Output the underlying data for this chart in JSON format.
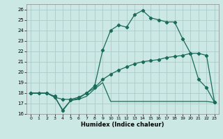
{
  "xlabel": "Humidex (Indice chaleur)",
  "bg_color": "#cce8e4",
  "grid_color": "#aaccca",
  "line_color": "#1a6b5a",
  "xlim": [
    -0.5,
    23.5
  ],
  "ylim": [
    16,
    26.5
  ],
  "yticks": [
    16,
    17,
    18,
    19,
    20,
    21,
    22,
    23,
    24,
    25,
    26
  ],
  "xticks": [
    0,
    1,
    2,
    3,
    4,
    5,
    6,
    7,
    8,
    9,
    10,
    11,
    12,
    13,
    14,
    15,
    16,
    17,
    18,
    19,
    20,
    21,
    22,
    23
  ],
  "line1_x": [
    0,
    1,
    2,
    3,
    4,
    5,
    6,
    7,
    8,
    9,
    10,
    11,
    12,
    13,
    14,
    15,
    16,
    17,
    18,
    19,
    20,
    21,
    22,
    23
  ],
  "line1_y": [
    18.0,
    18.0,
    18.0,
    17.7,
    16.3,
    17.3,
    17.5,
    18.0,
    18.7,
    22.1,
    24.0,
    24.5,
    24.3,
    25.5,
    25.9,
    25.2,
    25.0,
    24.8,
    24.8,
    23.2,
    21.8,
    19.3,
    18.5,
    17.1
  ],
  "line2_x": [
    0,
    2,
    3,
    4,
    5,
    6,
    7,
    8,
    9,
    10,
    11,
    12,
    13,
    14,
    15,
    16,
    17,
    18,
    19,
    20,
    21,
    22,
    23
  ],
  "line2_y": [
    18.0,
    18.0,
    17.6,
    17.4,
    17.4,
    17.6,
    18.0,
    18.5,
    19.3,
    19.8,
    20.2,
    20.5,
    20.8,
    21.0,
    21.1,
    21.2,
    21.4,
    21.5,
    21.6,
    21.8,
    21.8,
    21.6,
    17.1
  ],
  "line3_x": [
    0,
    2,
    3,
    4,
    5,
    6,
    7,
    8,
    9,
    10,
    18,
    19,
    20,
    21,
    22,
    23
  ],
  "line3_y": [
    18.0,
    18.0,
    17.6,
    16.4,
    17.3,
    17.4,
    17.7,
    18.4,
    19.0,
    17.2,
    17.2,
    17.2,
    17.2,
    17.2,
    17.2,
    17.1
  ]
}
